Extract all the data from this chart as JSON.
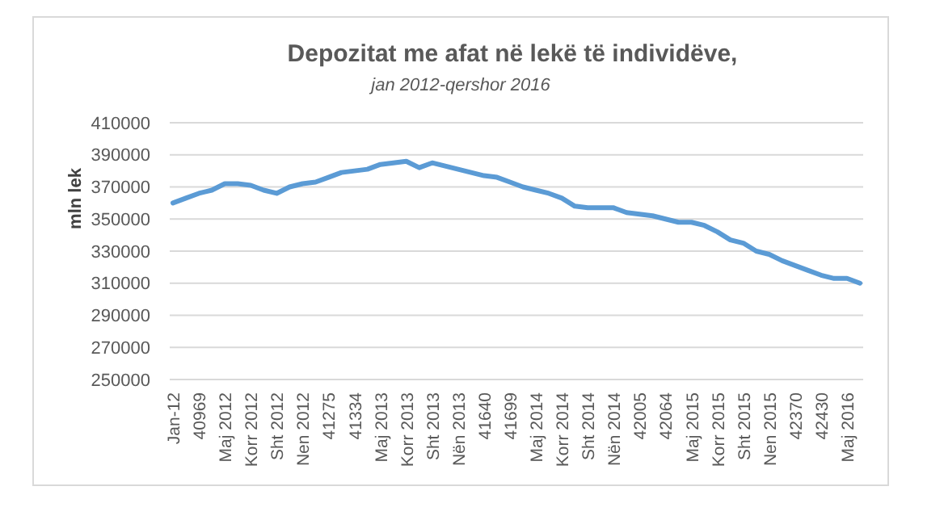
{
  "chart_data": {
    "type": "line",
    "title": "Depozitat me afat në lekë të individëve,",
    "subtitle": "jan 2012-qershor 2016",
    "ylabel": "mln lek",
    "categories": [
      "Jan-12",
      null,
      "40969",
      null,
      "Maj 2012",
      null,
      "Korr 2012",
      null,
      "Sht 2012",
      null,
      "Nen 2012",
      null,
      "41275",
      null,
      "41334",
      null,
      "Maj 2013",
      null,
      "Korr 2013",
      null,
      "Sht 2013",
      null,
      "Nën 2013",
      null,
      "41640",
      null,
      "41699",
      null,
      "Maj 2014",
      null,
      "Korr 2014",
      null,
      "Sht 2014",
      null,
      "Nën 2014",
      null,
      "42005",
      null,
      "42064",
      null,
      "Maj 2015",
      null,
      "Korr 2015",
      null,
      "Sht 2015",
      null,
      "Nen 2015",
      null,
      "42370",
      null,
      "42430",
      null,
      "Maj 2016",
      null
    ],
    "series": [
      {
        "color": "#5b9bd5",
        "values": [
          360000,
          363000,
          366000,
          368000,
          372000,
          372000,
          371000,
          368000,
          366000,
          370000,
          372000,
          373000,
          376000,
          379000,
          380000,
          381000,
          384000,
          385000,
          386000,
          382000,
          385000,
          383000,
          381000,
          379000,
          377000,
          376000,
          373000,
          370000,
          368000,
          366000,
          363000,
          358000,
          357000,
          357000,
          357000,
          354000,
          353000,
          352000,
          350000,
          348000,
          348000,
          346000,
          342000,
          337000,
          335000,
          330000,
          328000,
          324000,
          321000,
          318000,
          315000,
          313000,
          313000,
          310000
        ]
      }
    ],
    "ylim": [
      250000,
      410000
    ],
    "yticks": [
      250000,
      270000,
      290000,
      310000,
      330000,
      350000,
      370000,
      390000,
      410000
    ],
    "grid": "y",
    "marker": "none",
    "line_style": "solid"
  }
}
